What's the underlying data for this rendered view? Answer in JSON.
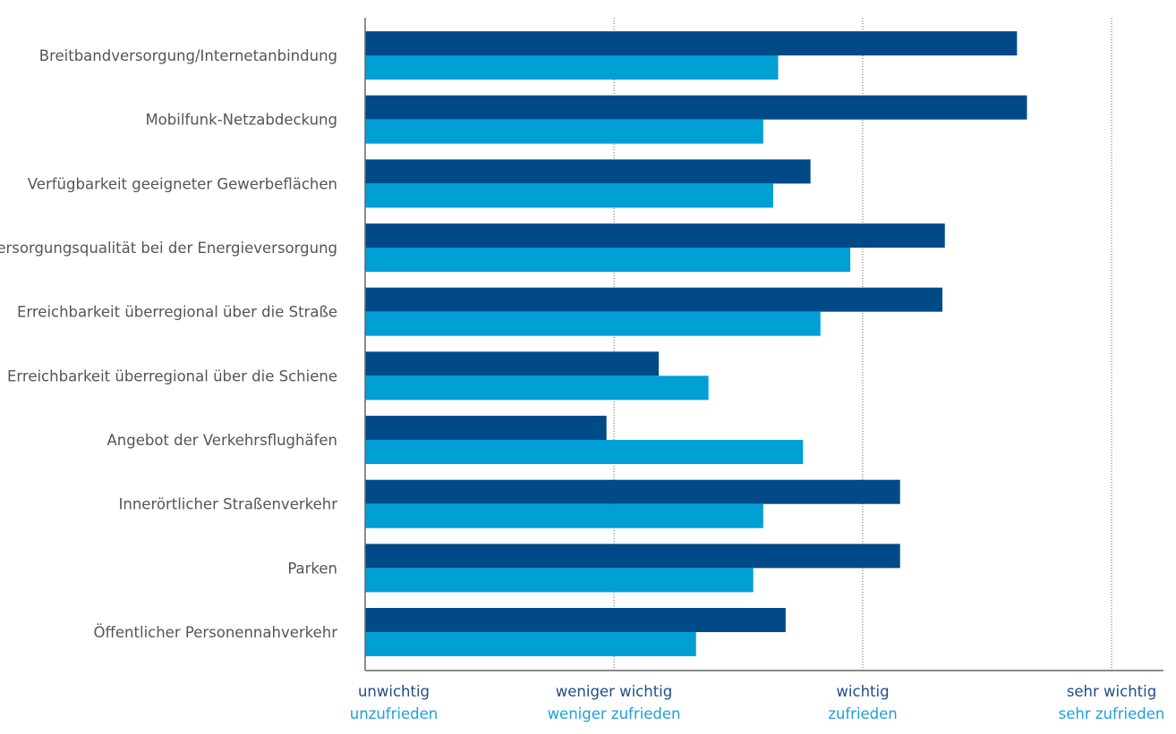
{
  "chart_data": {
    "type": "bar",
    "orientation": "horizontal",
    "categories": [
      "Breitbandversorgung/Internetanbindung",
      "Mobilfunk-Netzabdeckung",
      "Verfügbarkeit geeigneter Gewerbeflächen",
      "Versorgungsqualität bei der Energieversorgung",
      "Erreichbarkeit überregional über die Straße",
      "Erreichbarkeit überregional über die Schiene",
      "Angebot der Verkehrsflughäfen",
      "Innerörtlicher Straßenverkehr",
      "Parken",
      "Öffentlicher Personennahverkehr"
    ],
    "series": [
      {
        "values": [
          3.62,
          3.66,
          2.79,
          3.33,
          3.32,
          2.18,
          1.97,
          3.15,
          3.15,
          2.69
        ],
        "color": "#004a87"
      },
      {
        "values": [
          2.66,
          2.6,
          2.64,
          2.95,
          2.83,
          2.38,
          2.76,
          2.6,
          2.56,
          2.33
        ],
        "color": "#009fd6"
      }
    ],
    "xlim": [
      1,
      4.2
    ],
    "ticks": [
      1,
      2,
      3,
      4
    ],
    "tick_labels_importance": [
      "unwichtig",
      "weniger wichtig",
      "wichtig",
      "sehr wichtig"
    ],
    "tick_labels_satisfaction": [
      "unzufrieden",
      "weniger zufrieden",
      "zufrieden",
      "sehr zufrieden"
    ],
    "tick_label_colors": [
      "#1f4e8c",
      "#1fa0d6"
    ],
    "grid": "vertical dotted"
  }
}
